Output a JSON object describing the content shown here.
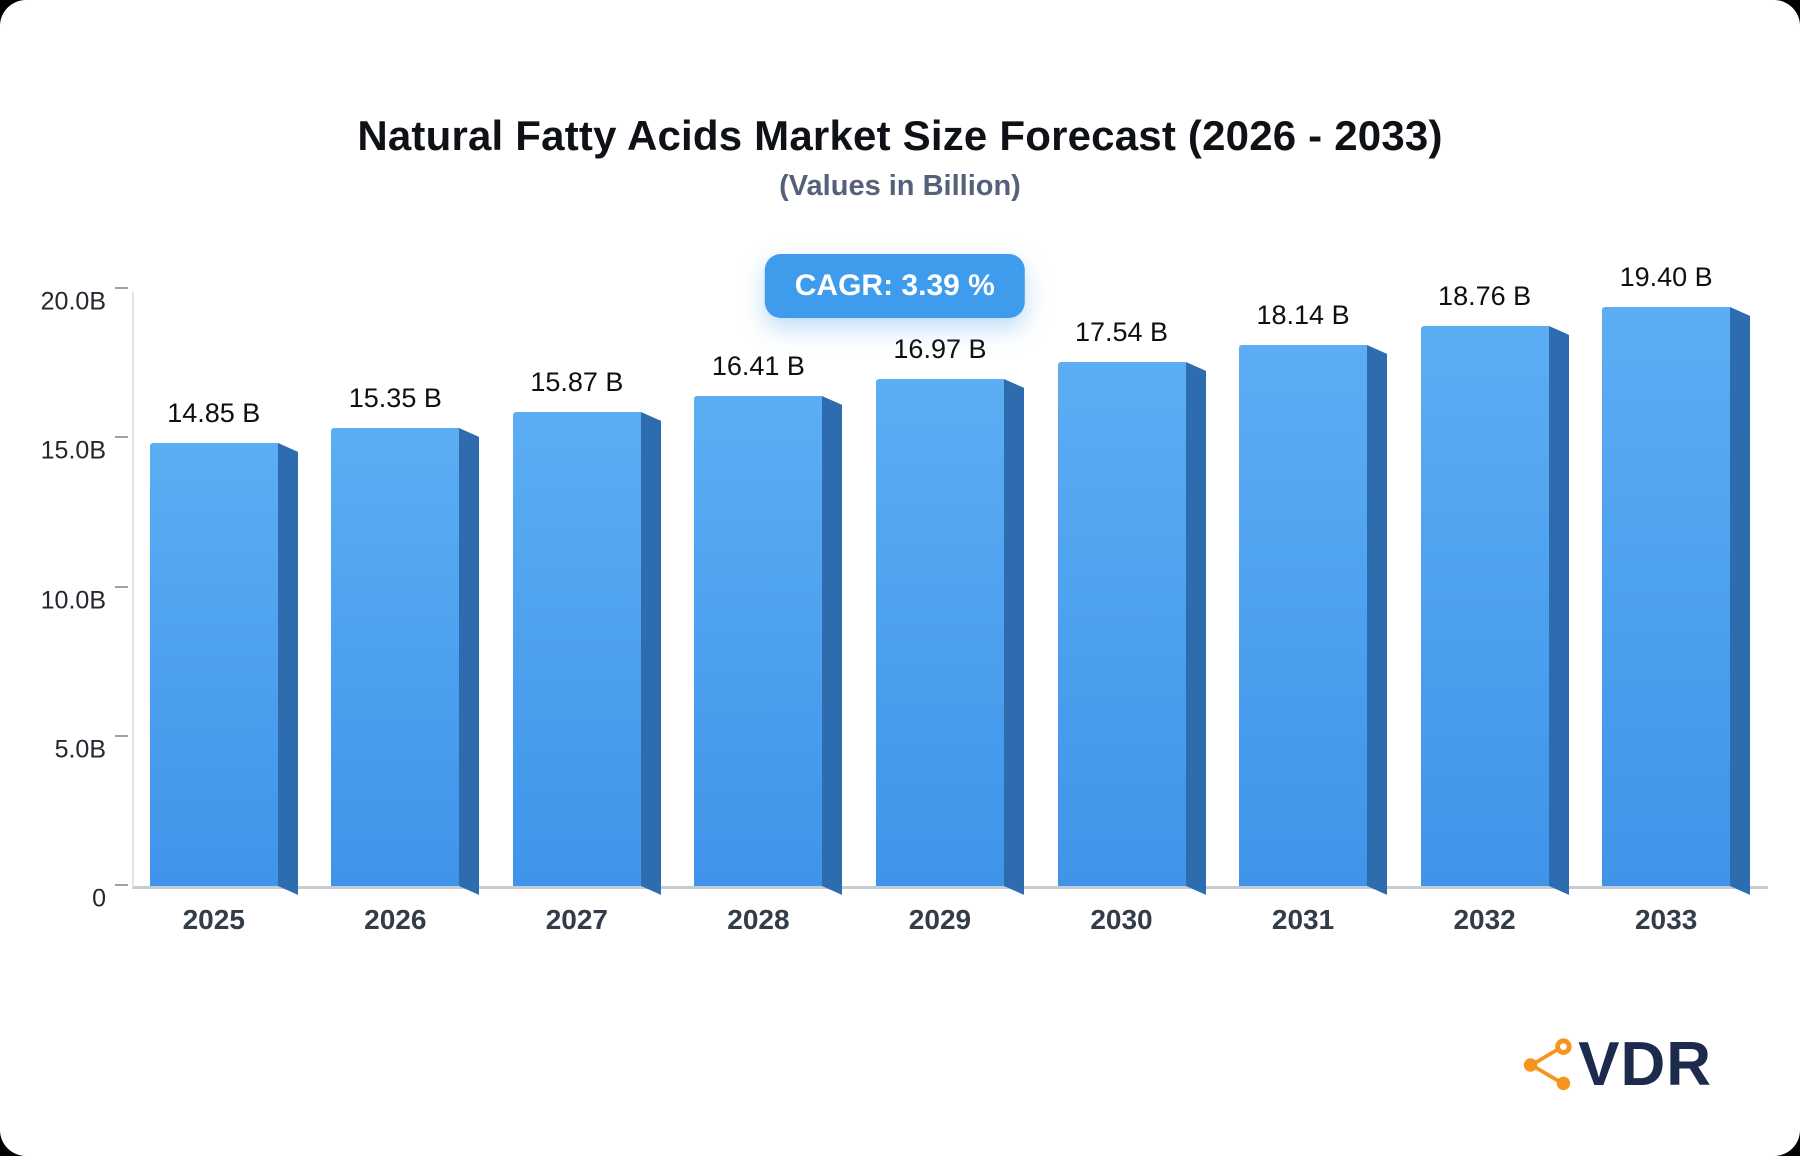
{
  "chart_data": {
    "type": "bar",
    "title": "Natural Fatty Acids Market Size Forecast (2026 - 2033)",
    "subtitle": "(Values in Billion)",
    "badge": "CAGR: 3.39 %",
    "categories": [
      "2025",
      "2026",
      "2027",
      "2028",
      "2029",
      "2030",
      "2031",
      "2032",
      "2033"
    ],
    "values": [
      14.85,
      15.35,
      15.87,
      16.41,
      16.97,
      17.54,
      18.14,
      18.76,
      19.4
    ],
    "value_labels": [
      "14.85 B",
      "15.35 B",
      "15.87 B",
      "16.41 B",
      "16.97 B",
      "17.54 B",
      "18.14 B",
      "18.76 B",
      "19.40 B"
    ],
    "xlabel": "",
    "ylabel": "",
    "ylim": [
      0,
      20
    ],
    "yticks": [
      {
        "label": "20.0B",
        "value": 20
      },
      {
        "label": "15.0B",
        "value": 15
      },
      {
        "label": "10.0B",
        "value": 10
      },
      {
        "label": "5.0B",
        "value": 5
      },
      {
        "label": "0",
        "value": 0
      }
    ],
    "grid": false,
    "legend": "none",
    "colors": {
      "bar_top": "#5cadf3",
      "bar_bottom": "#3f94ea",
      "bar_side": "#2d6cae",
      "badge_bg": "#3f9cec",
      "badge_text": "#ffffff"
    }
  },
  "logo": {
    "text": "VDR",
    "icon": "network-share-icon",
    "icon_color": "#f7941d",
    "text_color": "#1c2b4d"
  }
}
